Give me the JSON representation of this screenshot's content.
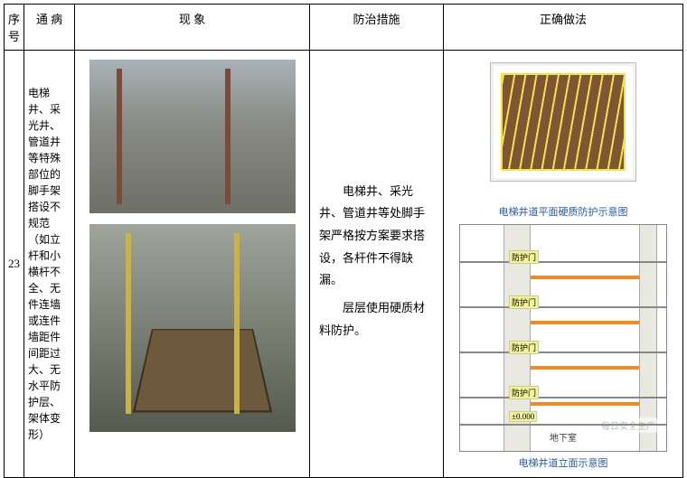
{
  "headers": {
    "seq": "序号",
    "issue": "通 病",
    "phenomenon": "现    象",
    "measure": "防治措施",
    "correct": "正确做法"
  },
  "row": {
    "seq": "23",
    "issue_text": "电梯井、采光井、管道井等特殊部位的脚手架搭设不规范（如立杆和小横杆不全、无件连墙或连件墙距件间距过大、无水平防护层、架体变形）",
    "measure_p1": "电梯井、采光井、管道井等处脚手架严格按方案要求搭设，各杆件不得缺漏。",
    "measure_p2": "层层使用硬质材料防护。",
    "top_diagram_caption": "电梯井道平面硬质防护示意图",
    "bot_diagram_caption": "电梯井道立面示意图",
    "door_label": "防护门",
    "bottom_door_label": "±0.000",
    "ground_label": "地下室",
    "watermark": "每日安全生产"
  },
  "colors": {
    "caption_color": "#2a5aa0",
    "wood_fill": "#7d5633",
    "stripe_color": "#f4e24a",
    "hard_protect": "#f08c1e",
    "wall_fill": "#e9e9e1",
    "door_tag_bg": "#f3f39c"
  },
  "section_diagram": {
    "floors_y": [
      40,
      90,
      140,
      190,
      220
    ],
    "hard_y": [
      56,
      106,
      156,
      196
    ],
    "door_y": [
      28,
      78,
      128,
      178,
      206
    ]
  }
}
